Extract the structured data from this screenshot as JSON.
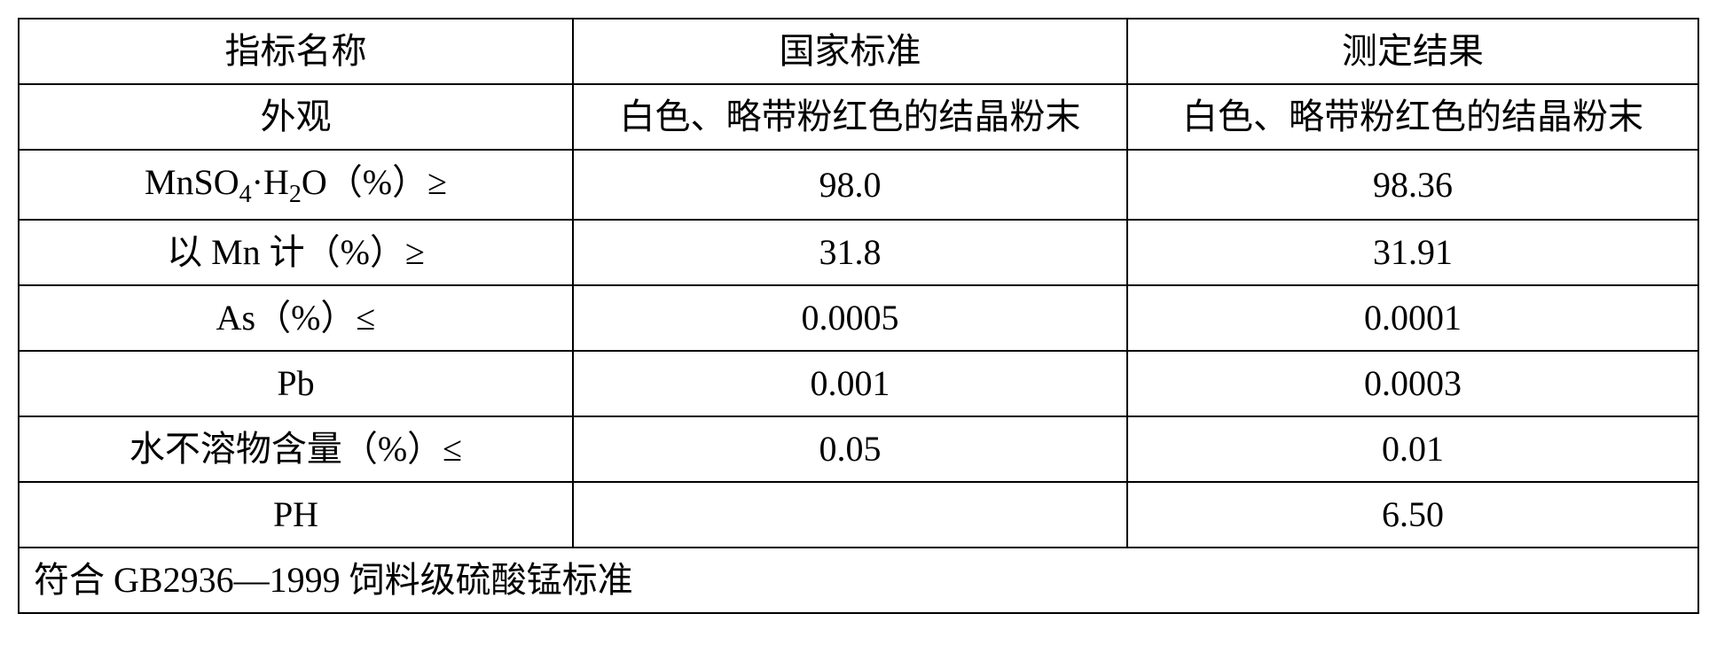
{
  "table": {
    "columns": [
      "指标名称",
      "国家标准",
      "测定结果"
    ],
    "rows": [
      {
        "name": "外观",
        "standard": "白色、略带粉红色的结晶粉末",
        "result": "白色、略带粉红色的结晶粉末"
      },
      {
        "name_html": "MnSO<sub>4</sub>·H<sub>2</sub>O（%）≥",
        "standard": "98.0",
        "result": "98.36"
      },
      {
        "name": "以 Mn 计（%）≥",
        "standard": "31.8",
        "result": "31.91"
      },
      {
        "name": "As（%）≤",
        "standard": "0.0005",
        "result": "0.0001"
      },
      {
        "name": "Pb",
        "standard": "0.001",
        "result": "0.0003"
      },
      {
        "name": "水不溶物含量（%）≤",
        "standard": "0.05",
        "result": "0.01"
      },
      {
        "name": "PH",
        "standard": "",
        "result": "6.50"
      }
    ],
    "footnote": "符合 GB2936—1999 饲料级硫酸锰标准",
    "border_color": "#000000",
    "background_color": "#ffffff",
    "font_size": 40,
    "col_widths": [
      "33%",
      "33%",
      "34%"
    ]
  }
}
